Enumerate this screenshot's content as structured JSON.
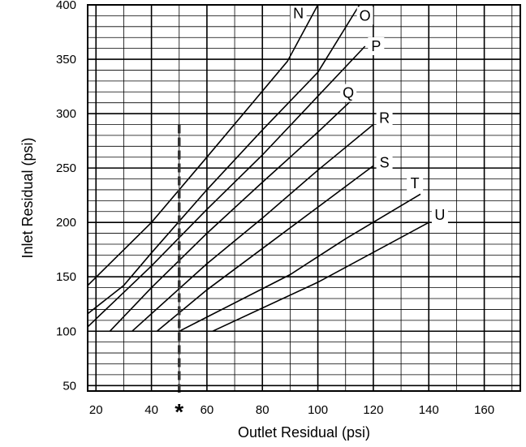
{
  "chart_data": {
    "type": "line",
    "xlabel": "Outlet Residual (psi)",
    "ylabel": "Inlet Residual (psi)",
    "xlim": [
      17,
      173
    ],
    "ylim": [
      45,
      400
    ],
    "x_ticks": [
      20,
      40,
      60,
      80,
      100,
      120,
      140,
      160
    ],
    "y_ticks": [
      50,
      100,
      150,
      200,
      250,
      300,
      350,
      400
    ],
    "x_minor_step": 10,
    "y_minor_step": 10,
    "grid": true,
    "marker": {
      "x": 50,
      "label": "*",
      "y_range": [
        45,
        290
      ]
    },
    "series": [
      {
        "name": "N",
        "points": [
          [
            17,
            142
          ],
          [
            40,
            200
          ],
          [
            60,
            260
          ],
          [
            89,
            348
          ],
          [
            100,
            400
          ]
        ],
        "label_at": [
          93,
          392
        ]
      },
      {
        "name": "O",
        "points": [
          [
            17,
            116
          ],
          [
            30,
            142
          ],
          [
            40,
            172
          ],
          [
            60,
            230
          ],
          [
            80,
            285
          ],
          [
            100,
            338
          ],
          [
            115,
            400
          ]
        ],
        "label_at": [
          117,
          390
        ]
      },
      {
        "name": "P",
        "points": [
          [
            17,
            104
          ],
          [
            40,
            160
          ],
          [
            60,
            212
          ],
          [
            80,
            262
          ],
          [
            100,
            316
          ],
          [
            117,
            362
          ]
        ],
        "label_at": [
          121,
          362
        ]
      },
      {
        "name": "Q",
        "points": [
          [
            25,
            100
          ],
          [
            40,
            140
          ],
          [
            60,
            190
          ],
          [
            80,
            237
          ],
          [
            100,
            283
          ],
          [
            112,
            312
          ]
        ],
        "label_at": [
          111,
          319
        ]
      },
      {
        "name": "R",
        "points": [
          [
            33,
            100
          ],
          [
            60,
            162
          ],
          [
            80,
            204
          ],
          [
            100,
            248
          ],
          [
            120,
            290
          ]
        ],
        "label_at": [
          124,
          296
        ]
      },
      {
        "name": "S",
        "points": [
          [
            42,
            100
          ],
          [
            60,
            138
          ],
          [
            80,
            176
          ],
          [
            100,
            214
          ],
          [
            120,
            252
          ]
        ],
        "label_at": [
          124,
          255
        ]
      },
      {
        "name": "T",
        "points": [
          [
            50,
            100
          ],
          [
            90,
            152
          ],
          [
            110,
            185
          ],
          [
            137,
            226
          ]
        ],
        "label_at": [
          135,
          236
        ]
      },
      {
        "name": "U",
        "points": [
          [
            62,
            100
          ],
          [
            100,
            145
          ],
          [
            140,
            200
          ]
        ],
        "label_at": [
          144,
          207
        ]
      }
    ]
  }
}
